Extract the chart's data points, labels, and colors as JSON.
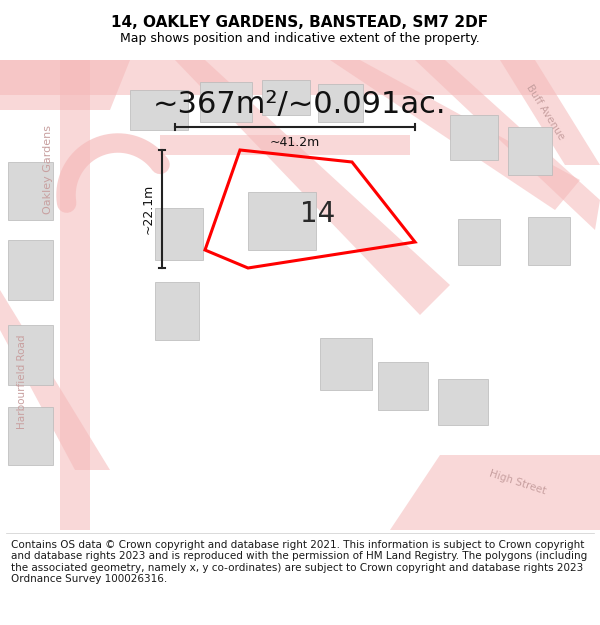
{
  "title": "14, OAKLEY GARDENS, BANSTEAD, SM7 2DF",
  "subtitle": "Map shows position and indicative extent of the property.",
  "area_text": "~367m²/~0.091ac.",
  "property_number": "14",
  "dim_width": "~41.2m",
  "dim_height": "~22.1m",
  "copyright_text": "Contains OS data © Crown copyright and database right 2021. This information is subject to Crown copyright and database rights 2023 and is reproduced with the permission of HM Land Registry. The polygons (including the associated geometry, namely x, y co-ordinates) are subject to Crown copyright and database rights 2023 Ordnance Survey 100026316.",
  "road_color": "#f5b8b8",
  "building_color": "#d8d8d8",
  "building_edge_color": "#b8b8b8",
  "property_color": "#ff0000",
  "map_bg": "#f0f0f0",
  "title_fontsize": 11,
  "subtitle_fontsize": 9,
  "area_fontsize": 22,
  "dim_fontsize": 9,
  "street_fontsize": 8,
  "copyright_fontsize": 7.5
}
